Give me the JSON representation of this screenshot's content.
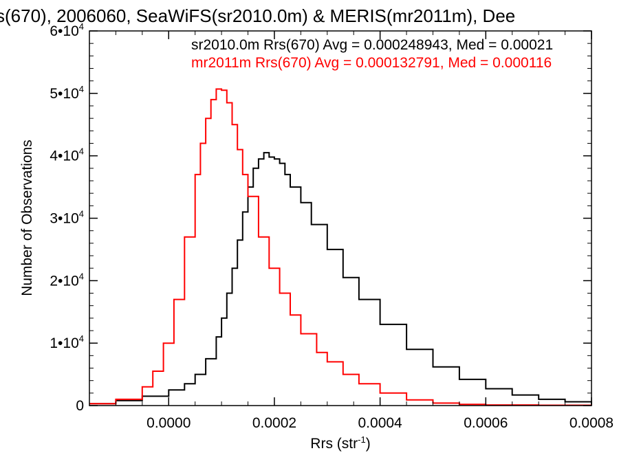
{
  "chart_data": {
    "type": "line",
    "title": "s(670), 2006060, SeaWiFS(sr2010.0m) & MERIS(mr2011m), Dee",
    "xlabel": "Rrs (str",
    "xlabel_sup": "-1",
    "xlabel_close": ")",
    "ylabel": "Number of Observations",
    "xlim": [
      -0.00015,
      0.0008
    ],
    "ylim": [
      0,
      60000
    ],
    "x_ticks": [
      0.0,
      0.0002,
      0.0004,
      0.0006,
      0.0008
    ],
    "x_tick_labels": [
      "0.0000",
      "0.0002",
      "0.0004",
      "0.0006",
      "0.0008"
    ],
    "y_ticks": [
      0,
      10000,
      20000,
      30000,
      40000,
      50000,
      60000
    ],
    "y_tick_labels": [
      {
        "base": "0",
        "exp": ""
      },
      {
        "base": "1•10",
        "exp": "4"
      },
      {
        "base": "2•10",
        "exp": "4"
      },
      {
        "base": "3•10",
        "exp": "4"
      },
      {
        "base": "4•10",
        "exp": "4"
      },
      {
        "base": "5•10",
        "exp": "4"
      },
      {
        "base": "6•10",
        "exp": "4"
      }
    ],
    "annotations": [
      "sr2010.0m Rrs(670) Avg = 0.000248943, Med = 0.00021",
      "mr2011m Rrs(670) Avg = 0.000132791, Med = 0.000116"
    ],
    "series": [
      {
        "color": "#000000",
        "x": [
          -0.00015,
          -0.0001,
          -5e-05,
          0.0,
          3e-05,
          5e-05,
          7e-05,
          9e-05,
          0.0001,
          0.00011,
          0.00012,
          0.00013,
          0.00014,
          0.00015,
          0.00016,
          0.00017,
          0.00018,
          0.00019,
          0.0002,
          0.00021,
          0.00022,
          0.00023,
          0.00025,
          0.00027,
          0.0003,
          0.00033,
          0.00036,
          0.0004,
          0.00045,
          0.0005,
          0.00055,
          0.0006,
          0.00065,
          0.0007,
          0.00075,
          0.0008
        ],
        "y": [
          300,
          800,
          1500,
          2500,
          3500,
          5000,
          7500,
          11000,
          14000,
          18000,
          22000,
          26500,
          31000,
          35000,
          38000,
          39500,
          40500,
          39800,
          39500,
          38800,
          37000,
          35000,
          32500,
          29000,
          25000,
          20500,
          17000,
          13000,
          9000,
          6200,
          4200,
          2700,
          1700,
          1000,
          600,
          300
        ]
      },
      {
        "color": "#ff0000",
        "x": [
          -0.00015,
          -0.0001,
          -5e-05,
          -3e-05,
          -1e-05,
          1e-05,
          3e-05,
          5e-05,
          6e-05,
          7e-05,
          8e-05,
          9e-05,
          0.0001,
          0.00011,
          0.00012,
          0.00013,
          0.00014,
          0.00015,
          0.00017,
          0.00019,
          0.00021,
          0.00023,
          0.00025,
          0.00028,
          0.0003,
          0.00033,
          0.00036,
          0.0004,
          0.00045,
          0.0005,
          0.00055,
          0.0006,
          0.0007,
          0.0008
        ],
        "y": [
          300,
          1000,
          3000,
          5500,
          10000,
          17000,
          27000,
          37000,
          42000,
          46000,
          49000,
          50700,
          50500,
          48500,
          45000,
          41000,
          37000,
          33500,
          27000,
          22000,
          18000,
          14500,
          11500,
          8500,
          7000,
          5000,
          3500,
          2000,
          900,
          400,
          200,
          100,
          50,
          20
        ]
      }
    ],
    "grid": false
  }
}
